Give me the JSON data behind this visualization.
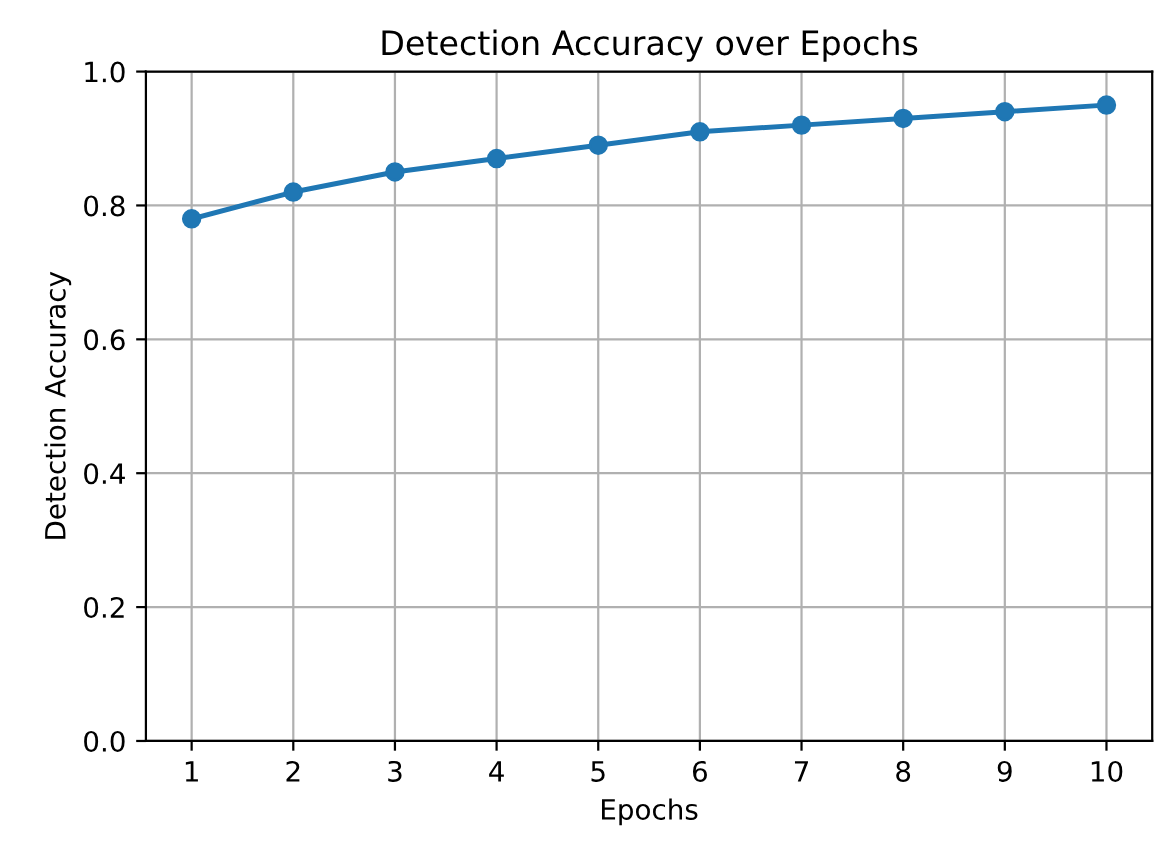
{
  "chart_data": {
    "type": "line",
    "title": "Detection Accuracy over Epochs",
    "xlabel": "Epochs",
    "ylabel": "Detection Accuracy",
    "x": [
      1,
      2,
      3,
      4,
      5,
      6,
      7,
      8,
      9,
      10
    ],
    "series": [
      {
        "color": "#1f77b4",
        "values": [
          0.78,
          0.82,
          0.85,
          0.87,
          0.89,
          0.91,
          0.92,
          0.93,
          0.94,
          0.95
        ]
      }
    ],
    "xlim": [
      0.55,
      10.45
    ],
    "xticks": [
      1,
      2,
      3,
      4,
      5,
      6,
      7,
      8,
      9,
      10
    ],
    "ylim": [
      0,
      1
    ],
    "yticks": [
      {
        "value": 0,
        "label": "0.0"
      },
      {
        "value": 0.2,
        "label": "0.2"
      },
      {
        "value": 0.4,
        "label": "0.4"
      },
      {
        "value": 0.6,
        "label": "0.6"
      },
      {
        "value": 0.8,
        "label": "0.8"
      },
      {
        "value": 1,
        "label": "1.0"
      }
    ],
    "grid": true,
    "marker": "circle",
    "line_style": "solid"
  }
}
